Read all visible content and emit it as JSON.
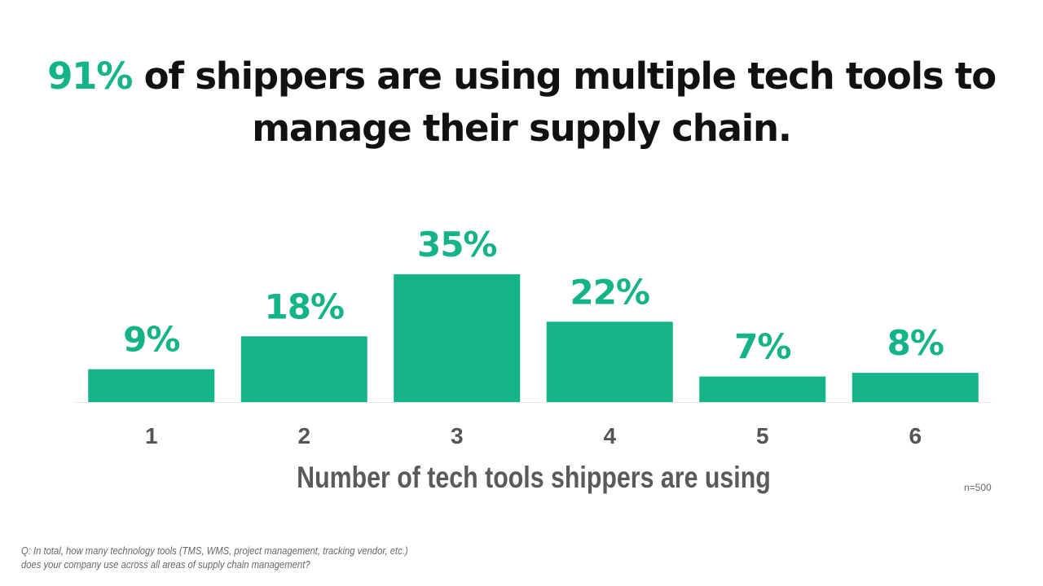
{
  "title": {
    "highlight": "91%",
    "rest": " of shippers are using multiple tech tools to manage their supply chain."
  },
  "colors": {
    "bar": "#14b388",
    "title": "#111111",
    "axis_text": "#555555"
  },
  "chart_data": {
    "type": "bar",
    "categories": [
      "1",
      "2",
      "3",
      "4",
      "5",
      "6"
    ],
    "values": [
      9,
      18,
      35,
      22,
      7,
      8
    ],
    "value_labels": [
      "9%",
      "18%",
      "35%",
      "22%",
      "7%",
      "8%"
    ],
    "xlabel": "Number of tech tools shippers are using",
    "ylabel": "",
    "ylim": [
      0,
      35
    ],
    "grid": false,
    "unit": "%"
  },
  "sample_size": "n=500",
  "footnote": {
    "line1": "Q: In total, how many technology tools (TMS, WMS, project management, tracking vendor, etc.)",
    "line2": "does your company use across all areas of supply chain management?"
  }
}
